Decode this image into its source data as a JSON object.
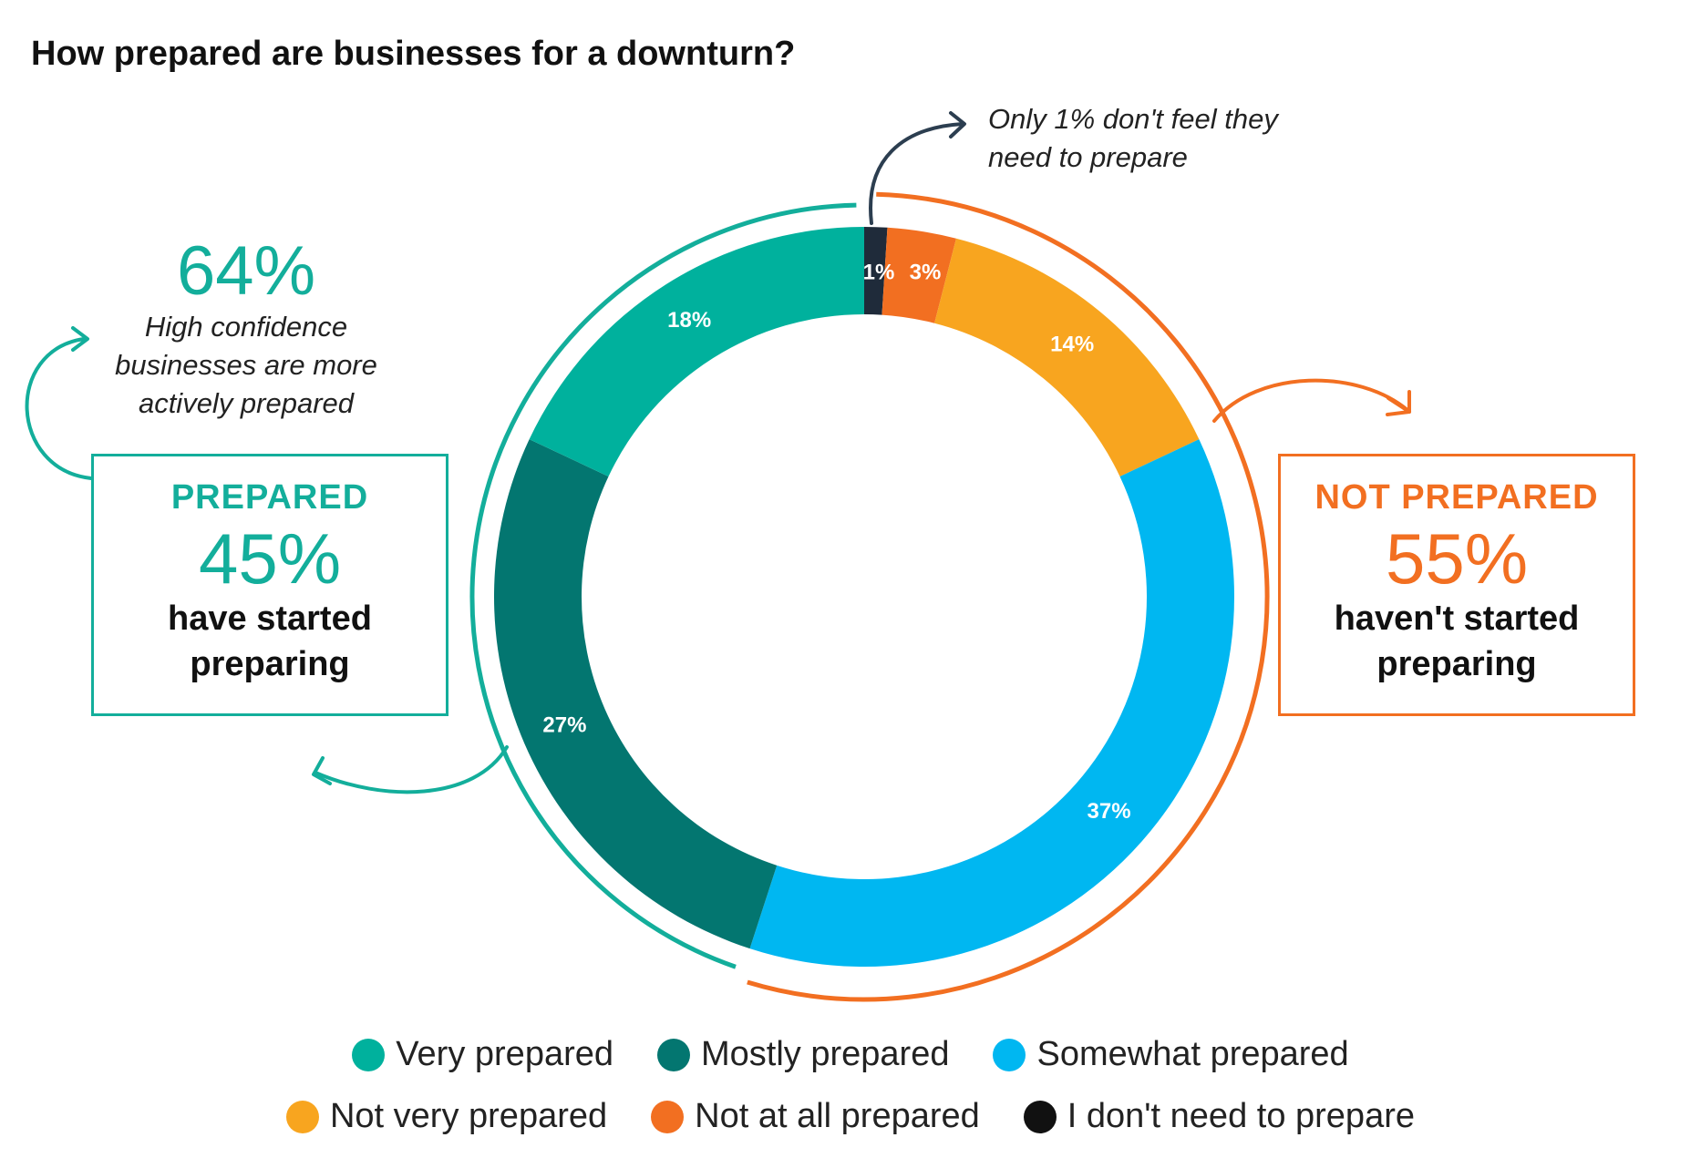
{
  "title": "How prepared are businesses for a downturn?",
  "annotations": {
    "top_note_line1": "Only 1% don't feel they",
    "top_note_line2": "need to prepare",
    "left_big": "64%",
    "left_note_line1": "High confidence",
    "left_note_line2": "businesses are more",
    "left_note_line3": "actively prepared"
  },
  "prepared_box": {
    "heading": "PREPARED",
    "value": "45%",
    "line1": "have started",
    "line2": "preparing",
    "color": "#13ae9b"
  },
  "not_prepared_box": {
    "heading": "NOT PREPARED",
    "value": "55%",
    "line1": "haven't started",
    "line2": "preparing",
    "color": "#f26f21"
  },
  "chart_data": {
    "type": "pie",
    "donut": true,
    "title": "How prepared are businesses for a downturn?",
    "legend_position": "bottom",
    "slices": [
      {
        "label": "I don't need to prepare",
        "value": 1,
        "display": "1%",
        "color": "#1f2b3a"
      },
      {
        "label": "Not at all prepared",
        "value": 3,
        "display": "3%",
        "color": "#f26f21"
      },
      {
        "label": "Not very prepared",
        "value": 14,
        "display": "14%",
        "color": "#f8a51f"
      },
      {
        "label": "Somewhat prepared",
        "value": 37,
        "display": "37%",
        "color": "#00b7f1"
      },
      {
        "label": "Mostly prepared",
        "value": 27,
        "display": "27%",
        "color": "#037670"
      },
      {
        "label": "Very prepared",
        "value": 18,
        "display": "18%",
        "color": "#00b19d"
      }
    ],
    "groups": [
      {
        "name": "PREPARED",
        "value": 45,
        "color": "#13ae9b"
      },
      {
        "name": "NOT PREPARED",
        "value": 55,
        "color": "#f26f21"
      }
    ]
  },
  "legend": {
    "row1": [
      {
        "label": "Very prepared",
        "color": "#00b19d"
      },
      {
        "label": "Mostly prepared",
        "color": "#037670"
      },
      {
        "label": "Somewhat prepared",
        "color": "#00b7f1"
      }
    ],
    "row2": [
      {
        "label": "Not very prepared",
        "color": "#f8a51f"
      },
      {
        "label": "Not at all prepared",
        "color": "#f26f21"
      },
      {
        "label": "I don't need to prepare",
        "color": "#111111"
      }
    ]
  }
}
